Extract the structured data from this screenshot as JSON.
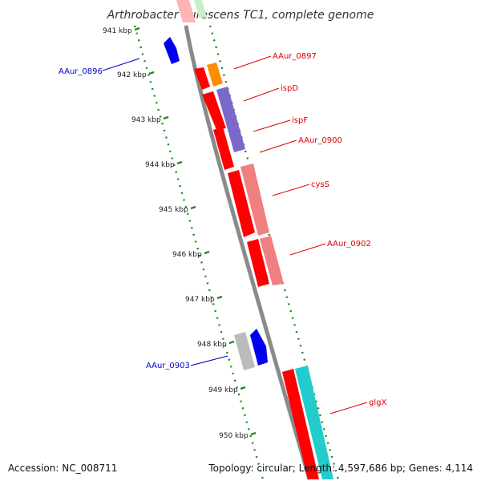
{
  "title": "Arthrobacter aurescens TC1, complete genome",
  "footer": {
    "accession": "Accession: NC_008711",
    "topology": "Topology: circular; Length: 4,597,686 bp; Genes: 4,114"
  },
  "colors": {
    "backbone": "#8a8a8a",
    "tick": "#1e8a1e",
    "forward_label": "#dd0000",
    "reverse_label": "#0000cc"
  },
  "kbp_labels": [
    "941 kbp",
    "942 kbp",
    "943 kbp",
    "944 kbp",
    "945 kbp",
    "946 kbp",
    "947 kbp",
    "948 kbp",
    "949 kbp",
    "950 kbp"
  ],
  "gene_labels": [
    {
      "name": "AAur_0896",
      "color": "#0000cc"
    },
    {
      "name": "AAur_0897",
      "color": "#dd0000"
    },
    {
      "name": "ispD",
      "color": "#dd0000"
    },
    {
      "name": "ispF",
      "color": "#dd0000"
    },
    {
      "name": "AAur_0900",
      "color": "#dd0000"
    },
    {
      "name": "cysS",
      "color": "#dd0000"
    },
    {
      "name": "AAur_0902",
      "color": "#dd0000"
    },
    {
      "name": "AAur_0903",
      "color": "#0000cc"
    },
    {
      "name": "glgX",
      "color": "#dd0000"
    }
  ]
}
